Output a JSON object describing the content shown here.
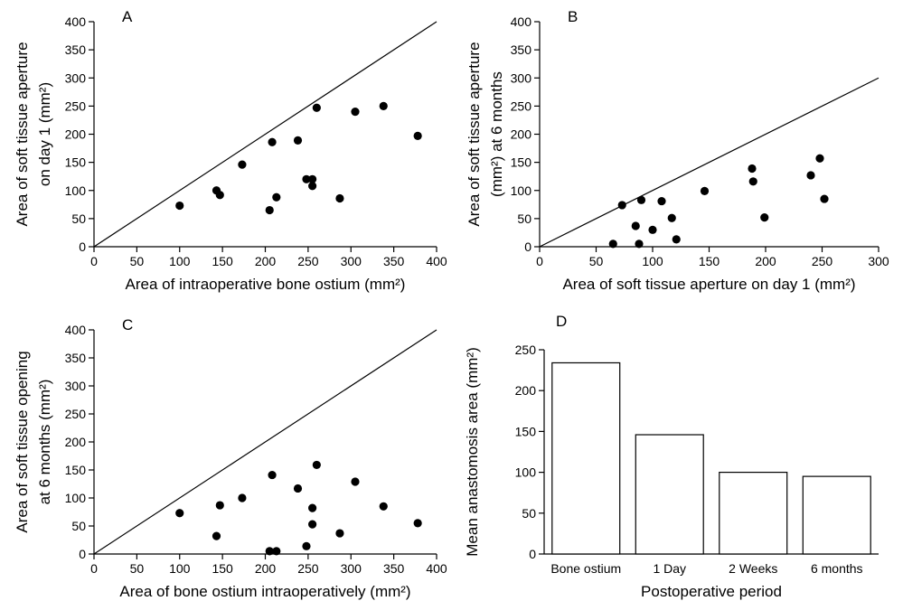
{
  "chart_data": [
    {
      "panel": "A",
      "type": "scatter",
      "xlabel": "Area of intraoperative bone ostium (mm²)",
      "ylabel_lines": [
        "Area of soft tissue aperture",
        "on day 1 (mm²)"
      ],
      "xlim": [
        0,
        400
      ],
      "ylim": [
        0,
        400
      ],
      "xticks": [
        0,
        50,
        100,
        150,
        200,
        250,
        300,
        350,
        400
      ],
      "yticks": [
        0,
        50,
        100,
        150,
        200,
        250,
        300,
        350,
        400
      ],
      "reference_line": "y = x",
      "points": [
        {
          "x": 100,
          "y": 73
        },
        {
          "x": 143,
          "y": 100
        },
        {
          "x": 147,
          "y": 92
        },
        {
          "x": 173,
          "y": 146
        },
        {
          "x": 205,
          "y": 65
        },
        {
          "x": 208,
          "y": 186
        },
        {
          "x": 213,
          "y": 88
        },
        {
          "x": 238,
          "y": 189
        },
        {
          "x": 248,
          "y": 120
        },
        {
          "x": 255,
          "y": 120
        },
        {
          "x": 255,
          "y": 108
        },
        {
          "x": 260,
          "y": 247
        },
        {
          "x": 287,
          "y": 86
        },
        {
          "x": 305,
          "y": 240
        },
        {
          "x": 338,
          "y": 250
        },
        {
          "x": 378,
          "y": 197
        }
      ]
    },
    {
      "panel": "B",
      "type": "scatter",
      "xlabel": "Area of soft tissue aperture on day 1 (mm²)",
      "ylabel_lines": [
        "Area of soft tissue aperture",
        "(mm²) at 6 months"
      ],
      "xlim": [
        0,
        300
      ],
      "ylim": [
        0,
        400
      ],
      "xticks": [
        0,
        50,
        100,
        150,
        200,
        250,
        300
      ],
      "yticks": [
        0,
        50,
        100,
        150,
        200,
        250,
        300,
        350,
        400
      ],
      "reference_line": "y = x",
      "points": [
        {
          "x": 65,
          "y": 5
        },
        {
          "x": 73,
          "y": 74
        },
        {
          "x": 85,
          "y": 37
        },
        {
          "x": 88,
          "y": 5
        },
        {
          "x": 90,
          "y": 83
        },
        {
          "x": 100,
          "y": 30
        },
        {
          "x": 108,
          "y": 81
        },
        {
          "x": 117,
          "y": 51
        },
        {
          "x": 121,
          "y": 13
        },
        {
          "x": 146,
          "y": 99
        },
        {
          "x": 188,
          "y": 139
        },
        {
          "x": 189,
          "y": 116
        },
        {
          "x": 199,
          "y": 52
        },
        {
          "x": 240,
          "y": 127
        },
        {
          "x": 248,
          "y": 157
        },
        {
          "x": 252,
          "y": 85
        }
      ]
    },
    {
      "panel": "C",
      "type": "scatter",
      "xlabel": "Area of bone ostium intraoperatively (mm²)",
      "ylabel_lines": [
        "Area of soft tissue opening",
        "at 6 months (mm²)"
      ],
      "xlim": [
        0,
        400
      ],
      "ylim": [
        0,
        400
      ],
      "xticks": [
        0,
        50,
        100,
        150,
        200,
        250,
        300,
        350,
        400
      ],
      "yticks": [
        0,
        50,
        100,
        150,
        200,
        250,
        300,
        350,
        400
      ],
      "reference_line": "y = x",
      "points": [
        {
          "x": 100,
          "y": 73
        },
        {
          "x": 143,
          "y": 32
        },
        {
          "x": 147,
          "y": 87
        },
        {
          "x": 173,
          "y": 100
        },
        {
          "x": 205,
          "y": 5
        },
        {
          "x": 208,
          "y": 141
        },
        {
          "x": 213,
          "y": 5
        },
        {
          "x": 238,
          "y": 117
        },
        {
          "x": 248,
          "y": 14
        },
        {
          "x": 255,
          "y": 82
        },
        {
          "x": 255,
          "y": 53
        },
        {
          "x": 260,
          "y": 159
        },
        {
          "x": 287,
          "y": 37
        },
        {
          "x": 305,
          "y": 129
        },
        {
          "x": 338,
          "y": 85
        },
        {
          "x": 378,
          "y": 55
        }
      ]
    },
    {
      "panel": "D",
      "type": "bar",
      "xlabel": "Postoperative period",
      "ylabel": "Mean anastomosis area (mm²)",
      "ylim": [
        0,
        250
      ],
      "yticks": [
        0,
        50,
        100,
        150,
        200,
        250
      ],
      "categories": [
        "Bone ostium",
        "1 Day",
        "2 Weeks",
        "6 months"
      ],
      "values": [
        234,
        146,
        100,
        95
      ]
    }
  ]
}
